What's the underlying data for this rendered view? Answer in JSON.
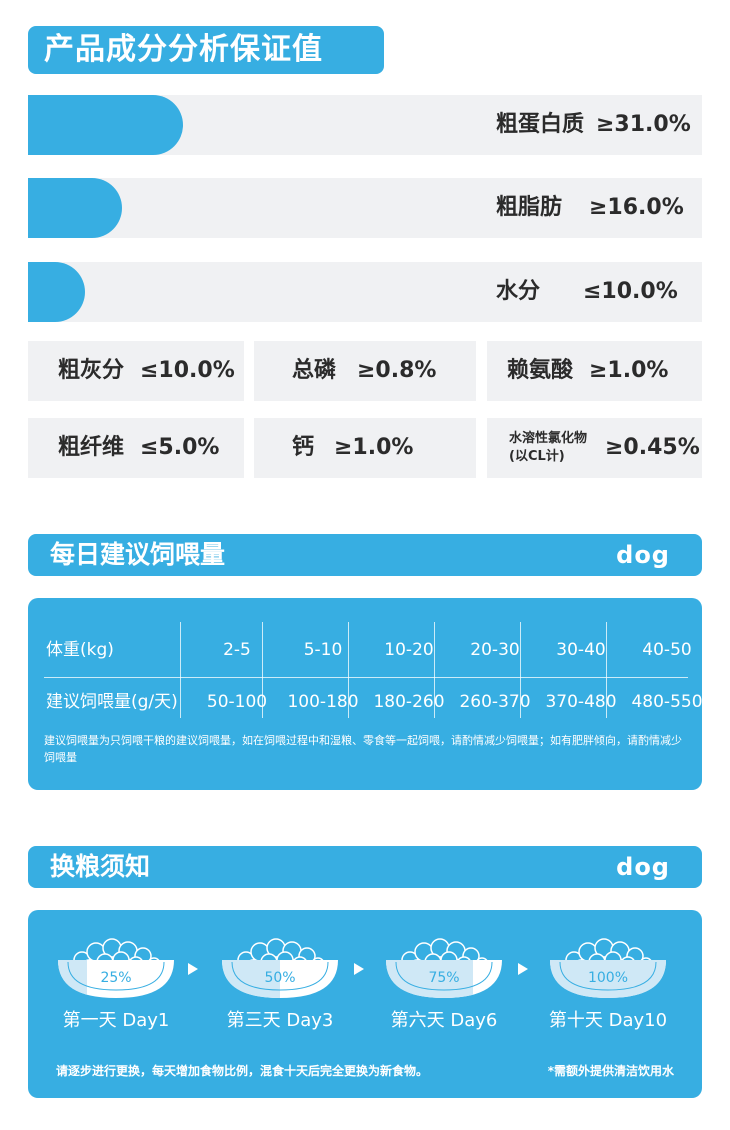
{
  "analysis": {
    "title": "产品成分分析保证值",
    "bars": [
      {
        "label": "粗蛋白质",
        "value": "≥31.0%",
        "fill": 0.23
      },
      {
        "label": "粗脂肪",
        "value": "≥16.0%",
        "fill": 0.14
      },
      {
        "label": "水分",
        "value": "≤10.0%",
        "fill": 0.085
      }
    ],
    "grid": [
      {
        "label": "粗灰分",
        "value": "≤10.0%"
      },
      {
        "label": "总磷",
        "value": "≥0.8%"
      },
      {
        "label": "赖氨酸",
        "value": "≥1.0%"
      },
      {
        "label": "粗纤维",
        "value": "≤5.0%"
      },
      {
        "label": "钙",
        "value": "≥1.0%"
      },
      {
        "label": "水溶性氯化物",
        "sublabel": "(以CL计)",
        "value": "≥0.45%"
      }
    ]
  },
  "feeding": {
    "title": "每日建议饲喂量",
    "tag": "dog",
    "row1_header": "体重(kg)",
    "row2_header": "建议饲喂量(g/天)",
    "weights": [
      "2-5",
      "5-10",
      "10-20",
      "20-30",
      "30-40",
      "40-50"
    ],
    "amounts": [
      "50-100",
      "100-180",
      "180-260",
      "260-370",
      "370-480",
      "480-550"
    ],
    "note": "建议饲喂量为只饲喂干粮的建议饲喂量，如在饲喂过程中和湿粮、零食等一起饲喂，请酌情减少饲喂量；如有肥胖倾向，请酌情减少饲喂量"
  },
  "transition": {
    "title": "换粮须知",
    "tag": "dog",
    "steps": [
      {
        "pct": "25%",
        "label": "第一天 Day1",
        "fill": 0.25
      },
      {
        "pct": "50%",
        "label": "第三天 Day3",
        "fill": 0.5
      },
      {
        "pct": "75%",
        "label": "第六天 Day6",
        "fill": 0.75
      },
      {
        "pct": "100%",
        "label": "第十天 Day10",
        "fill": 1.0
      }
    ],
    "footer_left": "请逐步进行更换，每天增加食物比例，混食十天后完全更换为新食物。",
    "footer_right": "*需额外提供清洁饮用水"
  },
  "colors": {
    "accent": "#37aee2",
    "card": "#f0f1f3"
  }
}
